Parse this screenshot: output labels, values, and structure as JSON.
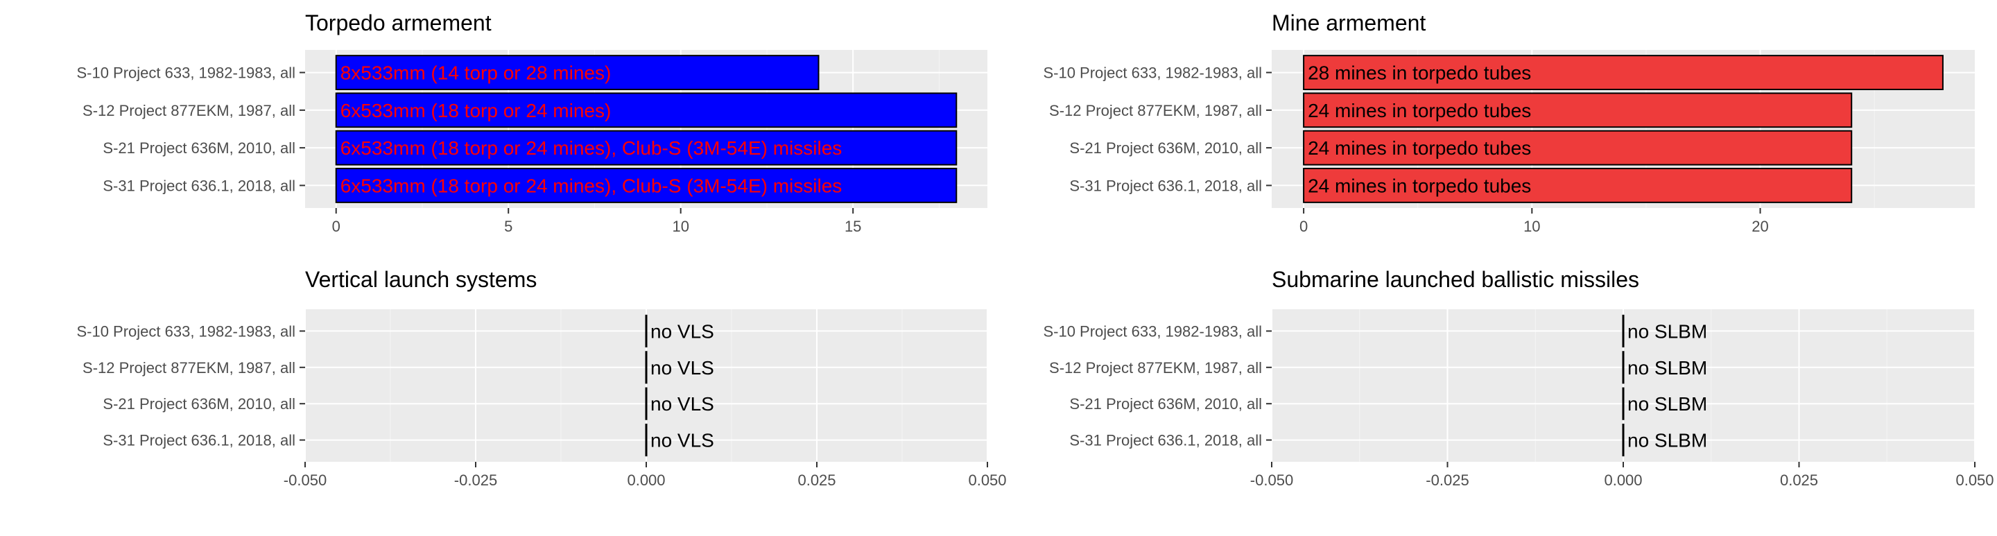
{
  "colors": {
    "panel_bg": "#ebebeb",
    "grid_major": "#ffffff",
    "grid_minor": "#f5f5f5",
    "tick_text": "#4d4d4d",
    "title_text": "#000000",
    "torpedo_fill": "#0000ff",
    "torpedo_label": "#ff0000",
    "mine_fill": "#ee3b3b",
    "mine_label": "#000000",
    "bar_outline": "#000000"
  },
  "chart_data": [
    {
      "type": "bar",
      "orientation": "horizontal",
      "title": "Torpedo armement",
      "xlabel": "",
      "ylabel": "",
      "categories": [
        "S-10 Project 633, 1982-1983, all",
        "S-12 Project 877EKM, 1987, all",
        "S-21 Project 636M, 2010, all",
        "S-31 Project 636.1, 2018, all"
      ],
      "values": [
        14,
        18,
        18,
        18
      ],
      "labels": [
        "8x533mm (14 torp or 28 mines)",
        "6x533mm (18 torp or 24 mines)",
        "6x533mm (18 torp or 24 mines), Club-S (3M-54E) missiles",
        "6x533mm (18 torp or 24 mines), Club-S (3M-54E) missiles"
      ],
      "xlim": [
        -0.9,
        18.9
      ],
      "xticks": [
        0,
        5,
        10,
        15
      ],
      "xtick_labels": [
        "0",
        "5",
        "10",
        "15"
      ],
      "minor_xticks": [
        2.5,
        7.5,
        12.5,
        17.5
      ],
      "fill": "#0000ff",
      "label_color": "#ff0000"
    },
    {
      "type": "bar",
      "orientation": "horizontal",
      "title": "Mine armement",
      "xlabel": "",
      "ylabel": "",
      "categories": [
        "S-10 Project 633, 1982-1983, all",
        "S-12 Project 877EKM, 1987, all",
        "S-21 Project 636M, 2010, all",
        "S-31 Project 636.1, 2018, all"
      ],
      "values": [
        28,
        24,
        24,
        24
      ],
      "labels": [
        "28 mines in torpedo tubes",
        "24 mines in torpedo tubes",
        "24 mines in torpedo tubes",
        "24 mines in torpedo tubes"
      ],
      "xlim": [
        -1.4,
        29.4
      ],
      "xticks": [
        0,
        10,
        20
      ],
      "xtick_labels": [
        "0",
        "10",
        "20"
      ],
      "minor_xticks": [
        5,
        15,
        25
      ],
      "fill": "#ee3b3b",
      "label_color": "#000000"
    },
    {
      "type": "bar",
      "orientation": "horizontal",
      "title": "Vertical launch systems",
      "xlabel": "",
      "ylabel": "",
      "categories": [
        "S-10 Project 633, 1982-1983, all",
        "S-12 Project 877EKM, 1987, all",
        "S-21 Project 636M, 2010, all",
        "S-31 Project 636.1, 2018, all"
      ],
      "values": [
        0,
        0,
        0,
        0
      ],
      "labels": [
        "no VLS",
        "no VLS",
        "no VLS",
        "no VLS"
      ],
      "xlim": [
        -0.05,
        0.05
      ],
      "xticks": [
        -0.05,
        -0.025,
        0,
        0.025,
        0.05
      ],
      "xtick_labels": [
        "-0.050",
        "-0.025",
        "0.000",
        "0.025",
        "0.050"
      ],
      "minor_xticks": [
        -0.0375,
        -0.0125,
        0.0125,
        0.0375
      ],
      "fill": "#000000",
      "label_color": "#000000"
    },
    {
      "type": "bar",
      "orientation": "horizontal",
      "title": "Submarine launched ballistic missiles",
      "xlabel": "",
      "ylabel": "",
      "categories": [
        "S-10 Project 633, 1982-1983, all",
        "S-12 Project 877EKM, 1987, all",
        "S-21 Project 636M, 2010, all",
        "S-31 Project 636.1, 2018, all"
      ],
      "values": [
        0,
        0,
        0,
        0
      ],
      "labels": [
        "no SLBM",
        "no SLBM",
        "no SLBM",
        "no SLBM"
      ],
      "xlim": [
        -0.05,
        0.05
      ],
      "xticks": [
        -0.05,
        -0.025,
        0,
        0.025,
        0.05
      ],
      "xtick_labels": [
        "-0.050",
        "-0.025",
        "0.000",
        "0.025",
        "0.050"
      ],
      "minor_xticks": [
        -0.0375,
        -0.0125,
        0.0125,
        0.0375
      ],
      "fill": "#000000",
      "label_color": "#000000"
    }
  ]
}
